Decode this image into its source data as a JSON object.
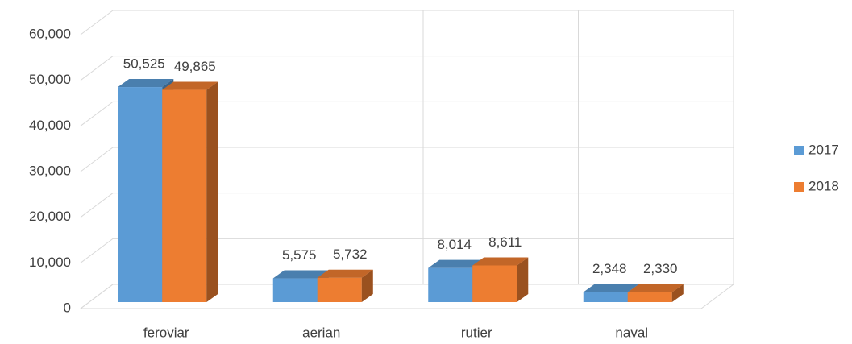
{
  "chart_data": {
    "type": "bar3d",
    "categories": [
      "feroviar",
      "aerian",
      "rutier",
      "naval"
    ],
    "series": [
      {
        "name": "2017",
        "color": "#5b9bd5",
        "values": [
          50525,
          5575,
          8014,
          2348
        ],
        "value_labels": [
          "50,525",
          "5,575",
          "8,014",
          "2,348"
        ]
      },
      {
        "name": "2018",
        "color": "#ed7d31",
        "values": [
          49865,
          5732,
          8611,
          2330
        ],
        "value_labels": [
          "49,865",
          "5,732",
          "8,611",
          "2,330"
        ]
      }
    ],
    "ylim": [
      0,
      60000
    ],
    "yticks": [
      0,
      {
        "value": 10000,
        "label": "10,000"
      },
      {
        "value": 20000,
        "label": "20,000"
      },
      {
        "value": 30000,
        "label": "30,000"
      },
      {
        "value": 40000,
        "label": "40,000"
      },
      {
        "value": 50000,
        "label": "50,000"
      },
      {
        "value": 60000,
        "label": "60,000"
      }
    ],
    "grid": true,
    "legend": "right"
  }
}
